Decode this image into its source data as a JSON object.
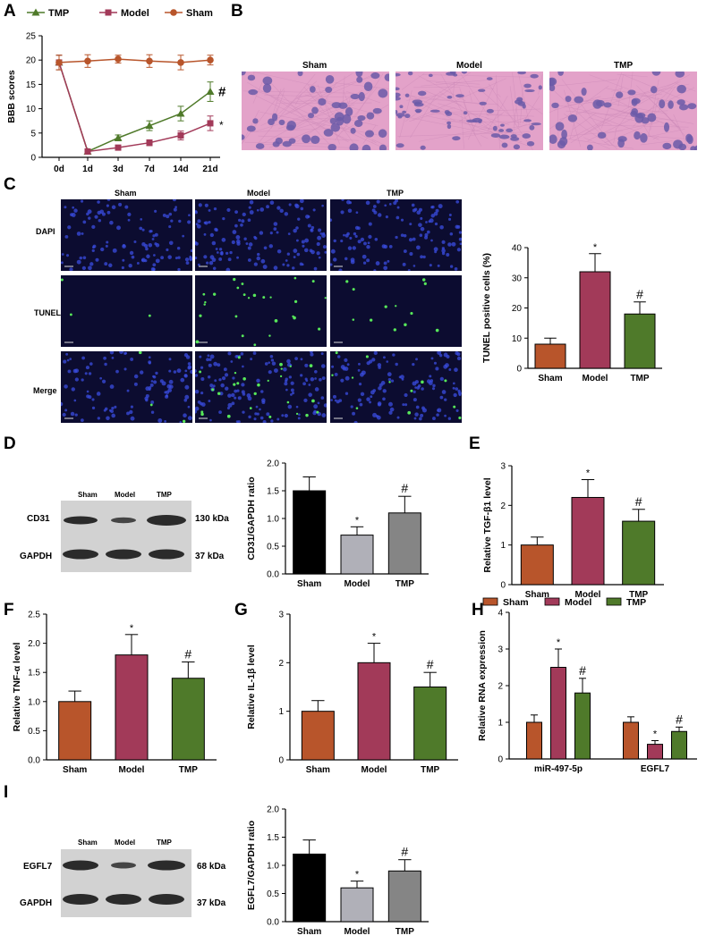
{
  "panels": {
    "A": "A",
    "B": "B",
    "C": "C",
    "D": "D",
    "E": "E",
    "F": "F",
    "G": "G",
    "H": "H",
    "I": "I"
  },
  "colors": {
    "tmp_green": "#4f7a2a",
    "model_maroon": "#a23a59",
    "sham_orange": "#b8552b",
    "sham_black": "#000000",
    "model_gray": "#b0b0b8",
    "tmp_gray": "#858585",
    "he_bg": "#e3a2c9",
    "he_nuc": "#6b5aa8",
    "fluo_bg": "#0c0c30",
    "fluo_dot": "#3a4ce0",
    "tunel_dot": "#57e85a"
  },
  "panelB": {
    "labels": [
      "Sham",
      "Model",
      "TMP"
    ]
  },
  "panelC": {
    "cols": [
      "Sham",
      "Model",
      "TMP"
    ],
    "rows": [
      "DAPI",
      "TUNEL",
      "Merge"
    ]
  },
  "blotD": {
    "groups": [
      "Sham",
      "Model",
      "TMP"
    ],
    "rows": [
      "CD31",
      "GAPDH"
    ],
    "kda": [
      "130 kDa",
      "37 kDa"
    ]
  },
  "blotI": {
    "groups": [
      "Sham",
      "Model",
      "TMP"
    ],
    "rows": [
      "EGFL7",
      "GAPDH"
    ],
    "kda": [
      "68 kDa",
      "37 kDa"
    ]
  },
  "chart_data": [
    {
      "id": "A",
      "type": "line",
      "categories": [
        "0d",
        "1d",
        "3d",
        "7d",
        "14d",
        "21d"
      ],
      "ylabel": "BBB scores",
      "ylim": [
        0,
        25
      ],
      "yticks": [
        0,
        5,
        10,
        15,
        20,
        25
      ],
      "series": [
        {
          "name": "TMP",
          "values": [
            19.5,
            1.2,
            4.0,
            6.5,
            9.0,
            13.5
          ],
          "err": [
            1.5,
            0.3,
            0.6,
            1.0,
            1.5,
            2.0
          ],
          "marker": "triangle"
        },
        {
          "name": "Model",
          "values": [
            19.5,
            1.2,
            2.0,
            3.0,
            4.5,
            7.0
          ],
          "err": [
            1.5,
            0.3,
            0.4,
            0.6,
            0.9,
            1.5
          ],
          "marker": "square"
        },
        {
          "name": "Sham",
          "values": [
            19.5,
            19.8,
            20.2,
            19.8,
            19.5,
            20.0
          ],
          "err": [
            1.5,
            1.3,
            0.8,
            1.3,
            1.5,
            1.0
          ],
          "marker": "circle"
        }
      ],
      "annotations": [
        "#",
        "*"
      ]
    },
    {
      "id": "C",
      "type": "bar",
      "categories": [
        "Sham",
        "Model",
        "TMP"
      ],
      "values": [
        8,
        32,
        18
      ],
      "err": [
        2,
        6,
        4
      ],
      "ylabel": "TUNEL positive cells (%)",
      "ylim": [
        0,
        40
      ],
      "yticks": [
        0,
        10,
        20,
        30,
        40
      ],
      "marks": [
        "",
        "*",
        "#"
      ]
    },
    {
      "id": "D",
      "type": "bar",
      "categories": [
        "Sham",
        "Model",
        "TMP"
      ],
      "values": [
        1.5,
        0.7,
        1.1
      ],
      "err": [
        0.25,
        0.15,
        0.3
      ],
      "ylabel": "CD31/GAPDH ratio",
      "ylim": [
        0,
        2.0
      ],
      "yticks": [
        "0.0",
        "0.5",
        "1.0",
        "1.5",
        "2.0"
      ],
      "marks": [
        "",
        "*",
        "#"
      ]
    },
    {
      "id": "E",
      "type": "bar",
      "categories": [
        "Sham",
        "Model",
        "TMP"
      ],
      "values": [
        1.0,
        2.2,
        1.6
      ],
      "err": [
        0.2,
        0.45,
        0.3
      ],
      "ylabel": "Relative TGF-β1 level",
      "ylim": [
        0,
        3
      ],
      "yticks": [
        0,
        1,
        2,
        3
      ],
      "marks": [
        "",
        "*",
        "#"
      ]
    },
    {
      "id": "F",
      "type": "bar",
      "categories": [
        "Sham",
        "Model",
        "TMP"
      ],
      "values": [
        1.0,
        1.8,
        1.4
      ],
      "err": [
        0.18,
        0.35,
        0.28
      ],
      "ylabel": "Relative TNF-α level",
      "ylim": [
        0,
        2.5
      ],
      "yticks": [
        "0.0",
        "0.5",
        "1.0",
        "1.5",
        "2.0",
        "2.5"
      ],
      "marks": [
        "",
        "*",
        "#"
      ]
    },
    {
      "id": "G",
      "type": "bar",
      "categories": [
        "Sham",
        "Model",
        "TMP"
      ],
      "values": [
        1.0,
        2.0,
        1.5
      ],
      "err": [
        0.22,
        0.4,
        0.3
      ],
      "ylabel": "Relative IL-1β level",
      "ylim": [
        0,
        3
      ],
      "yticks": [
        0,
        1,
        2,
        3
      ],
      "marks": [
        "",
        "*",
        "#"
      ]
    },
    {
      "id": "H",
      "type": "bar",
      "categories": [
        "miR-497-5p",
        "EGFL7"
      ],
      "ylabel": "Relative RNA expression",
      "ylim": [
        0,
        4
      ],
      "yticks": [
        0,
        1,
        2,
        3,
        4
      ],
      "series": [
        {
          "name": "Sham",
          "values": [
            1.0,
            1.0
          ],
          "err": [
            0.2,
            0.15
          ]
        },
        {
          "name": "Model",
          "values": [
            2.5,
            0.4
          ],
          "err": [
            0.5,
            0.1
          ]
        },
        {
          "name": "TMP",
          "values": [
            1.8,
            0.75
          ],
          "err": [
            0.4,
            0.12
          ]
        }
      ],
      "marks": [
        [
          "",
          "*",
          "#"
        ],
        [
          "",
          "*",
          "#"
        ]
      ]
    },
    {
      "id": "I",
      "type": "bar",
      "categories": [
        "Sham",
        "Model",
        "TMP"
      ],
      "values": [
        1.2,
        0.6,
        0.9
      ],
      "err": [
        0.25,
        0.12,
        0.2
      ],
      "ylabel": "EGFL7/GAPDH ratio",
      "ylim": [
        0,
        2.0
      ],
      "yticks": [
        "0.0",
        "0.5",
        "1.0",
        "1.5",
        "2.0"
      ],
      "marks": [
        "",
        "*",
        "#"
      ]
    }
  ]
}
